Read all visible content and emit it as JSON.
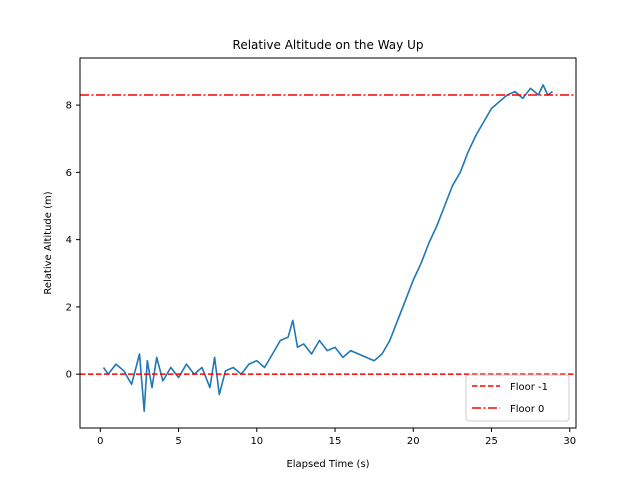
{
  "chart_data": {
    "type": "line",
    "title": "Relative Altitude on the Way Up",
    "xlabel": "Elapsed Time (s)",
    "ylabel": "Relative Altitude (m)",
    "xlim": [
      -1.3,
      30.4
    ],
    "ylim": [
      -1.6,
      9.4
    ],
    "xticks": [
      0,
      5,
      10,
      15,
      20,
      25,
      30
    ],
    "yticks": [
      0,
      2,
      4,
      6,
      8
    ],
    "grid": false,
    "legend_position": "lower right",
    "series": [
      {
        "name": "",
        "color": "#1f77b4",
        "style": "solid",
        "x": [
          0.2,
          0.5,
          1.0,
          1.5,
          2.0,
          2.5,
          2.8,
          3.0,
          3.3,
          3.6,
          4.0,
          4.5,
          5.0,
          5.5,
          6.0,
          6.5,
          7.0,
          7.3,
          7.6,
          8.0,
          8.5,
          9.0,
          9.5,
          10.0,
          10.5,
          11.0,
          11.5,
          12.0,
          12.3,
          12.6,
          13.0,
          13.5,
          14.0,
          14.5,
          15.0,
          15.5,
          16.0,
          16.5,
          17.0,
          17.5,
          18.0,
          18.5,
          19.0,
          19.5,
          20.0,
          20.5,
          21.0,
          21.5,
          22.0,
          22.5,
          23.0,
          23.5,
          24.0,
          24.5,
          25.0,
          25.5,
          26.0,
          26.5,
          27.0,
          27.5,
          28.0,
          28.3,
          28.6,
          28.9
        ],
        "y": [
          0.2,
          0.0,
          0.3,
          0.1,
          -0.3,
          0.6,
          -1.1,
          0.4,
          -0.4,
          0.5,
          -0.2,
          0.2,
          -0.1,
          0.3,
          0.0,
          0.2,
          -0.4,
          0.5,
          -0.6,
          0.1,
          0.2,
          0.0,
          0.3,
          0.4,
          0.2,
          0.6,
          1.0,
          1.1,
          1.6,
          0.8,
          0.9,
          0.6,
          1.0,
          0.7,
          0.8,
          0.5,
          0.7,
          0.6,
          0.5,
          0.4,
          0.6,
          1.0,
          1.6,
          2.2,
          2.8,
          3.3,
          3.9,
          4.4,
          5.0,
          5.6,
          6.0,
          6.6,
          7.1,
          7.5,
          7.9,
          8.1,
          8.3,
          8.4,
          8.2,
          8.5,
          8.3,
          8.6,
          8.3,
          8.4
        ]
      },
      {
        "name": "Floor -1",
        "color": "#ff0000",
        "style": "dashed",
        "value": 0
      },
      {
        "name": "Floor 0",
        "color": "#ff0000",
        "style": "dashdot",
        "value": 8.3
      }
    ]
  }
}
